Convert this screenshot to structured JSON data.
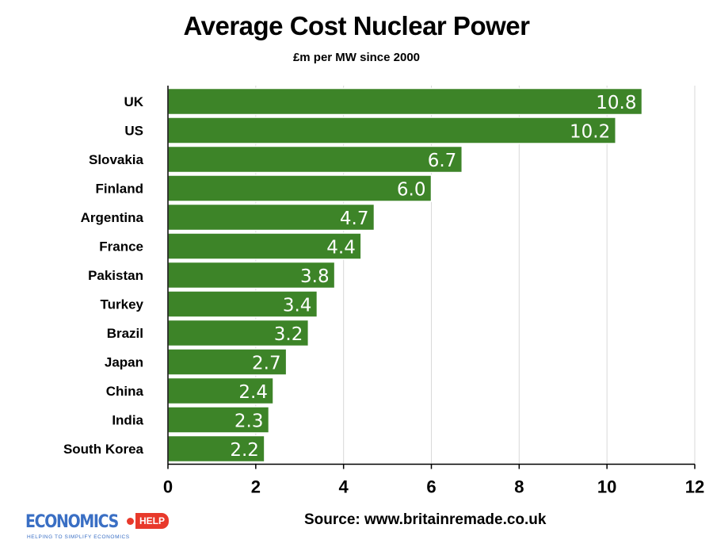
{
  "chart_data": {
    "type": "bar",
    "orientation": "horizontal",
    "title": "Average Cost Nuclear Power",
    "subtitle": "£m per MW since 2000",
    "categories": [
      "UK",
      "US",
      "Slovakia",
      "Finland",
      "Argentina",
      "France",
      "Pakistan",
      "Turkey",
      "Brazil",
      "Japan",
      "China",
      "India",
      "South Korea"
    ],
    "values": [
      10.8,
      10.2,
      6.7,
      6.0,
      4.7,
      4.4,
      3.8,
      3.4,
      3.2,
      2.7,
      2.4,
      2.3,
      2.2
    ],
    "data_labels": [
      "10.8",
      "10.2",
      "6.7",
      "6.0",
      "4.7",
      "4.4",
      "3.8",
      "3.4",
      "3.2",
      "2.7",
      "2.4",
      "2.3",
      "2.2"
    ],
    "xlim": [
      0,
      12
    ],
    "xticks": [
      "0",
      "2",
      "4",
      "6",
      "8",
      "10",
      "12"
    ],
    "xlabel": "",
    "ylabel": "",
    "grid": "vertical",
    "legend": "none",
    "bar_color": "#3d8428",
    "bar_border_color": "#ffffff",
    "label_color": "#ffffff"
  },
  "footer": {
    "source": "Source: www.britainremade.co.uk"
  },
  "logo": {
    "word": "ECONOMICS",
    "badge": "HELP",
    "tagline": "HELPING TO SIMPLIFY ECONOMICS",
    "primary_color": "#3a6fc4",
    "accent_color": "#e8392b"
  }
}
